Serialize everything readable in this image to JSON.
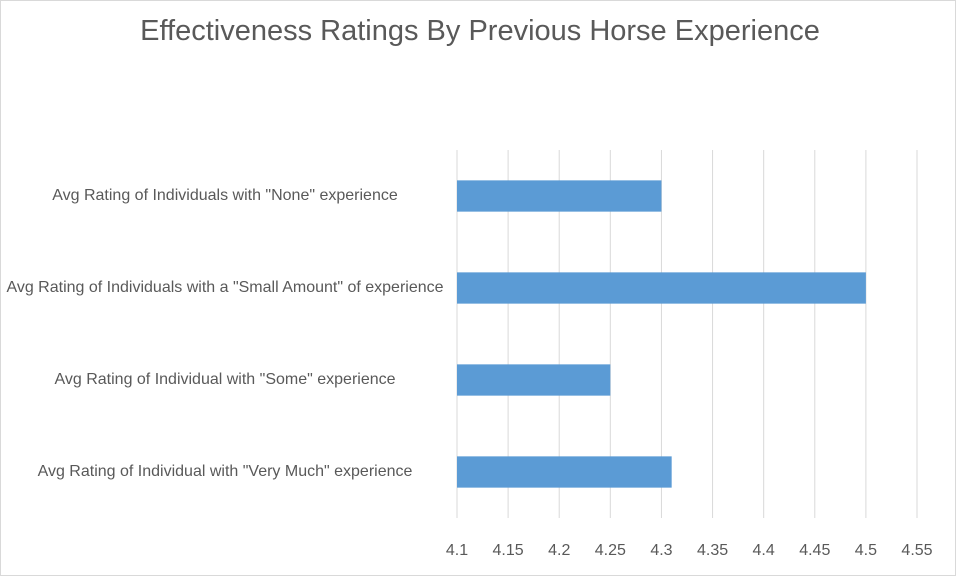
{
  "chart_data": {
    "type": "barh",
    "title": "Effectiveness Ratings By Previous Horse Experience",
    "categories": [
      "Avg Rating of Individuals with \"None\" experience",
      "Avg Rating of Individuals with a \"Small Amount\" of experience",
      "Avg Rating of Individual with \"Some\" experience",
      "Avg Rating of Individual with \"Very Much\" experience"
    ],
    "values": [
      4.3,
      4.5,
      4.25,
      4.31
    ],
    "color": "#5b9bd5",
    "xlim": [
      4.1,
      4.55
    ],
    "xticks": [
      4.1,
      4.15,
      4.2,
      4.25,
      4.3,
      4.35,
      4.4,
      4.45,
      4.5,
      4.55
    ],
    "grid": true
  }
}
